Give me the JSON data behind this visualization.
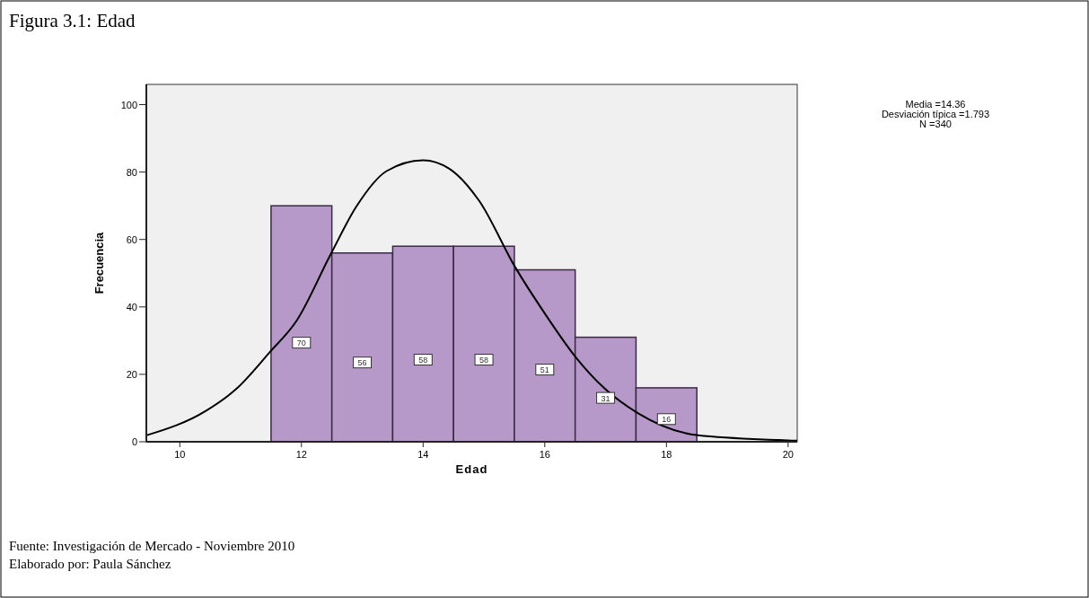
{
  "chart_data": {
    "type": "histogram",
    "title": "Figura 3.1: Edad",
    "xlabel": "Edad",
    "ylabel": "Frecuencia",
    "bins": [
      11.5,
      12.5,
      13.5,
      14.5,
      15.5,
      16.5,
      17.5,
      18.5
    ],
    "values": [
      70,
      56,
      58,
      58,
      51,
      31,
      16
    ],
    "color": "#b799c9",
    "value_labels": [
      "70",
      "56",
      "58",
      "58",
      "51",
      "31",
      "16"
    ],
    "series": [
      {
        "type": "line",
        "color": "#000000",
        "x": [
          9.45,
          10.44,
          10.93,
          11.48,
          11.92,
          12.48,
          12.9,
          13.4,
          14.0,
          14.43,
          14.92,
          15.51,
          16.01,
          16.5,
          16.99,
          17.53,
          18.52,
          19.85,
          20.15
        ],
        "values": [
          1.9,
          9.3,
          15.7,
          26.6,
          35.9,
          55.6,
          69.7,
          80.3,
          83.5,
          81,
          71.5,
          51.9,
          37.8,
          25.3,
          15.7,
          8.5,
          1.9,
          0.5,
          0.3
        ]
      }
    ],
    "xlim": [
      9.45,
      20.15
    ],
    "xticks": [
      10,
      12,
      14,
      16,
      18,
      20
    ],
    "ylim": [
      0,
      106
    ],
    "yticks": [
      0,
      20,
      40,
      60,
      80,
      100
    ],
    "annotations": [
      "Media =14.36",
      "Desviación típica =1.793",
      "N =340",
      "Fuente: Investigación de Mercado - Noviembre 2010",
      "Elaborado por: Paula Sánchez"
    ]
  }
}
